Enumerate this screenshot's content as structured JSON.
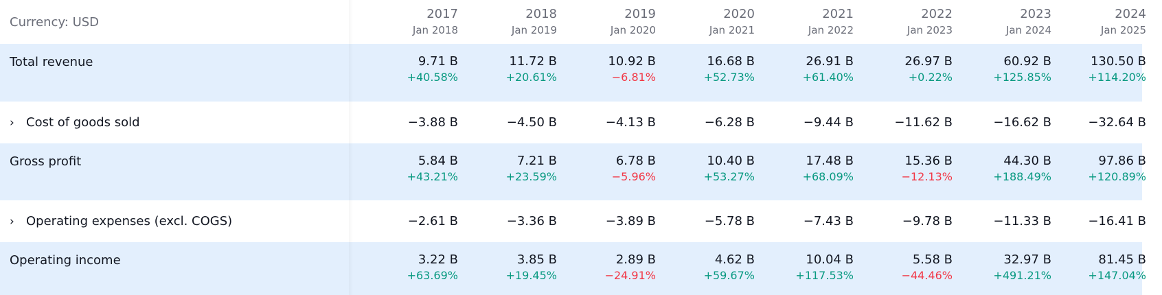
{
  "currency_label": "Currency: USD",
  "columns": [
    {
      "year": "2017",
      "period": "Jan 2018"
    },
    {
      "year": "2018",
      "period": "Jan 2019"
    },
    {
      "year": "2019",
      "period": "Jan 2020"
    },
    {
      "year": "2020",
      "period": "Jan 2021"
    },
    {
      "year": "2021",
      "period": "Jan 2022"
    },
    {
      "year": "2022",
      "period": "Jan 2023"
    },
    {
      "year": "2023",
      "period": "Jan 2024"
    },
    {
      "year": "2024",
      "period": "Jan 2025"
    }
  ],
  "rows": [
    {
      "label": "Total revenue",
      "expandable": false,
      "values": [
        "9.71 B",
        "11.72 B",
        "10.92 B",
        "16.68 B",
        "26.91 B",
        "26.97 B",
        "60.92 B",
        "130.50 B"
      ],
      "changes": [
        "+40.58%",
        "+20.61%",
        "−6.81%",
        "+52.73%",
        "+61.40%",
        "+0.22%",
        "+125.85%",
        "+114.20%"
      ]
    },
    {
      "label": "Cost of goods sold",
      "expandable": true,
      "values": [
        "−3.88 B",
        "−4.50 B",
        "−4.13 B",
        "−6.28 B",
        "−9.44 B",
        "−11.62 B",
        "−16.62 B",
        "−32.64 B"
      ]
    },
    {
      "label": "Gross profit",
      "expandable": false,
      "values": [
        "5.84 B",
        "7.21 B",
        "6.78 B",
        "10.40 B",
        "17.48 B",
        "15.36 B",
        "44.30 B",
        "97.86 B"
      ],
      "changes": [
        "+43.21%",
        "+23.59%",
        "−5.96%",
        "+53.27%",
        "+68.09%",
        "−12.13%",
        "+188.49%",
        "+120.89%"
      ]
    },
    {
      "label": "Operating expenses (excl. COGS)",
      "expandable": true,
      "values": [
        "−2.61 B",
        "−3.36 B",
        "−3.89 B",
        "−5.78 B",
        "−7.43 B",
        "−9.78 B",
        "−11.33 B",
        "−16.41 B"
      ]
    },
    {
      "label": "Operating income",
      "expandable": false,
      "values": [
        "3.22 B",
        "3.85 B",
        "2.89 B",
        "4.62 B",
        "10.04 B",
        "5.58 B",
        "32.97 B",
        "81.45 B"
      ],
      "changes": [
        "+63.69%",
        "+19.45%",
        "−24.91%",
        "+59.67%",
        "+117.53%",
        "−44.46%",
        "+491.21%",
        "+147.04%"
      ]
    }
  ],
  "chevron_glyph": "›",
  "colors": {
    "positive": "#089981",
    "negative": "#f23645",
    "highlight_row": "#e3effd"
  }
}
